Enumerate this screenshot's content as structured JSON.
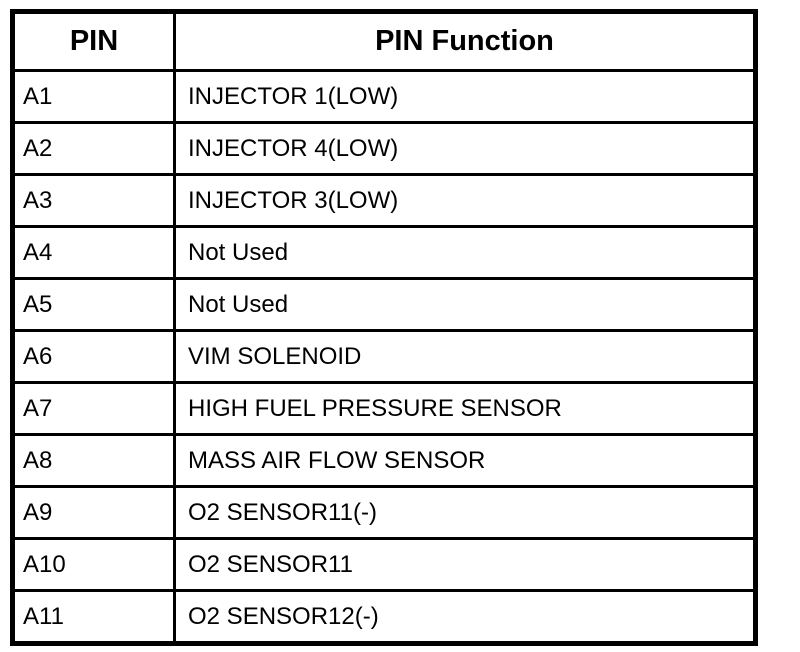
{
  "table": {
    "header": [
      "PIN",
      "PIN Function"
    ],
    "rows": [
      [
        "A1",
        "INJECTOR 1(LOW)"
      ],
      [
        "A2",
        "INJECTOR 4(LOW)"
      ],
      [
        "A3",
        "INJECTOR 3(LOW)"
      ],
      [
        "A4",
        "Not Used"
      ],
      [
        "A5",
        "Not Used"
      ],
      [
        "A6",
        "VIM SOLENOID"
      ],
      [
        "A7",
        "HIGH FUEL PRESSURE SENSOR"
      ],
      [
        "A8",
        "MASS AIR FLOW SENSOR"
      ],
      [
        "A9",
        "O2 SENSOR11(-)"
      ],
      [
        "A10",
        "O2 SENSOR11"
      ],
      [
        "A11",
        "O2 SENSOR12(-)"
      ]
    ]
  }
}
